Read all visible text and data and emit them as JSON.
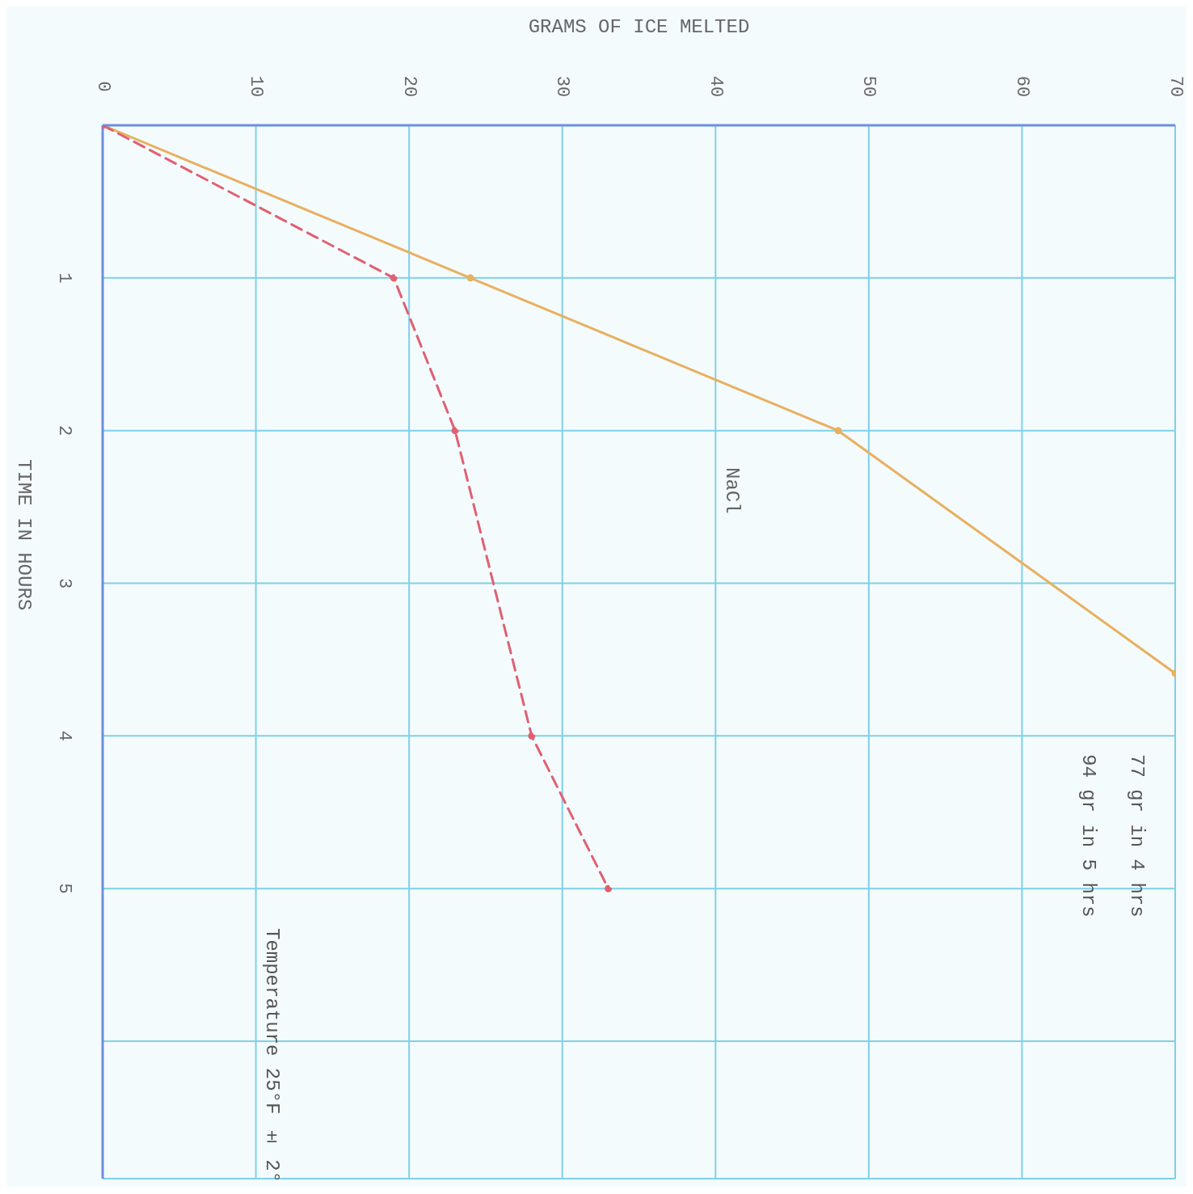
{
  "chart_data": {
    "type": "line",
    "xlabel": "GRAMS OF ICE MELTED",
    "ylabel": "TIME IN HOURS",
    "xlim": [
      0,
      70
    ],
    "xticks": [
      0,
      10,
      20,
      30,
      40,
      50,
      60,
      70
    ],
    "ylim": [
      6.9,
      0
    ],
    "yticks": [
      {
        "value": 0,
        "label": null
      },
      1,
      2,
      3,
      4,
      5,
      {
        "value": 6,
        "label": null
      }
    ],
    "grid": true,
    "legend": false,
    "marker": "circle",
    "series": [
      {
        "name": "NaCl",
        "color": "#e8b060",
        "line_style": "solid",
        "x": [
          0,
          24,
          48,
          70
        ],
        "values": [
          0,
          1,
          2,
          3.59
        ]
      },
      {
        "color": "#e06070",
        "line_style": "dashed",
        "x": [
          0,
          19,
          23,
          28,
          33
        ],
        "values": [
          0,
          1,
          2,
          4,
          5
        ]
      }
    ],
    "annotations": [
      "77 gr in 4 hrs",
      "94 gr in 5 hrs",
      "Temperature 25°F ± 2°"
    ]
  }
}
